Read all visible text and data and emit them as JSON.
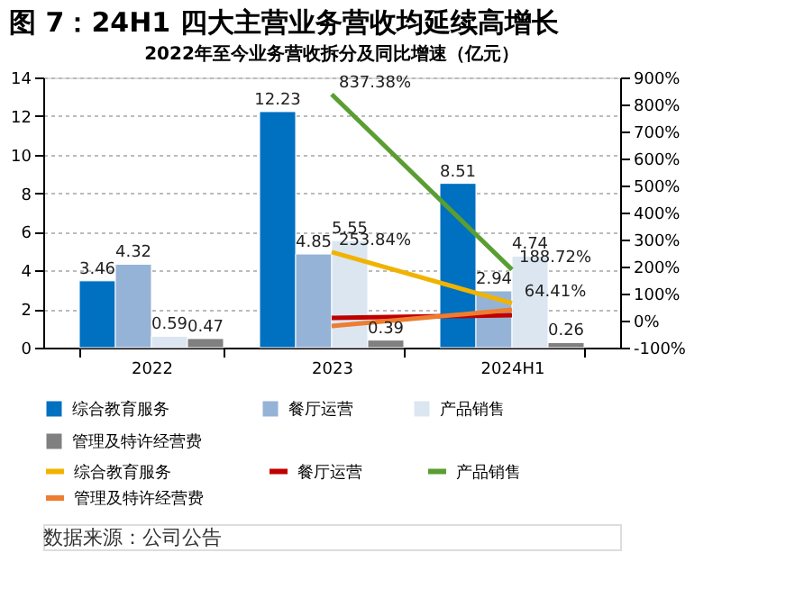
{
  "chart_data": {
    "type": "bar",
    "title": "图 7：24H1 四大主营业务营收均延续高增长",
    "subtitle": "2022年至今业务营收拆分及同比增速（亿元）",
    "categories": [
      "2022",
      "2023",
      "2024H1"
    ],
    "series": [
      {
        "name": "综合教育服务",
        "color": "#0070c0",
        "values": [
          3.46,
          12.23,
          8.51
        ],
        "value_labels": [
          "3.46",
          "12.23",
          "8.51"
        ]
      },
      {
        "name": "餐厅运营",
        "color": "#95b3d7",
        "values": [
          4.32,
          4.85,
          2.94
        ],
        "value_labels": [
          "4.32",
          "4.85",
          "2.94"
        ]
      },
      {
        "name": "产品销售",
        "color": "#dce6f1",
        "values": [
          0.59,
          5.55,
          4.74
        ],
        "value_labels": [
          "0.59",
          "5.55",
          "4.74"
        ]
      },
      {
        "name": "管理及特许经营费",
        "color": "#808080",
        "values": [
          0.47,
          0.39,
          0.26
        ],
        "value_labels": [
          "0.47",
          "0.39",
          "0.26"
        ]
      },
      {
        "name": "综合教育服务",
        "type": "line",
        "axis": "y2",
        "color": "#f0b400",
        "values": [
          null,
          253.84,
          64.41
        ],
        "value_labels": [
          null,
          "253.84%",
          "64.41%"
        ]
      },
      {
        "name": "餐厅运营",
        "type": "line",
        "axis": "y2",
        "color": "#c00000",
        "values": [
          null,
          10,
          20
        ]
      },
      {
        "name": "产品销售",
        "type": "line",
        "axis": "y2",
        "color": "#5a9e32",
        "values": [
          null,
          837.38,
          188.72
        ],
        "value_labels": [
          null,
          "837.38%",
          "188.72%"
        ]
      },
      {
        "name": "管理及特许经营费",
        "type": "line",
        "axis": "y2",
        "color": "#ed7d31",
        "values": [
          null,
          -20,
          40
        ]
      }
    ],
    "ylim": [
      0,
      14
    ],
    "yticks": [
      0,
      2,
      4,
      6,
      8,
      10,
      12,
      14
    ],
    "y2lim": [
      -100,
      900
    ],
    "y2ticks": [
      {
        "value": -100,
        "label": "-100%"
      },
      {
        "value": 0,
        "label": "0%"
      },
      {
        "value": 100,
        "label": "100%"
      },
      {
        "value": 200,
        "label": "200%"
      },
      {
        "value": 300,
        "label": "300%"
      },
      {
        "value": 400,
        "label": "400%"
      },
      {
        "value": 500,
        "label": "500%"
      },
      {
        "value": 600,
        "label": "600%"
      },
      {
        "value": 700,
        "label": "700%"
      },
      {
        "value": 800,
        "label": "800%"
      },
      {
        "value": 900,
        "label": "900%"
      }
    ],
    "grid": "y",
    "legend": "bottom",
    "annotations": [
      "数据来源：公司公告"
    ]
  }
}
